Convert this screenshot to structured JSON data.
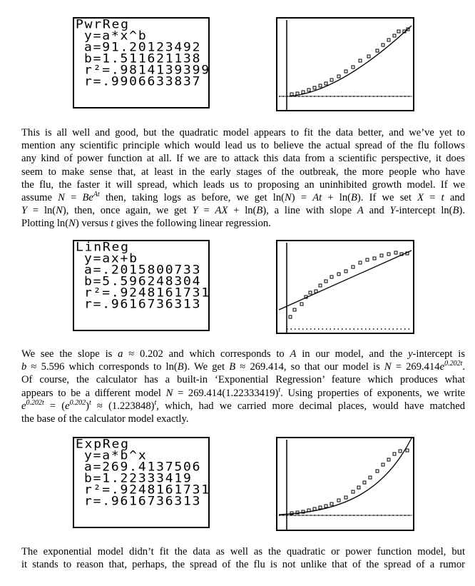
{
  "screens": [
    {
      "lines": [
        "PwrReg",
        "y=a*x^b",
        "a=91.20123492",
        "b=1.511621138",
        "r²=.9814139399",
        "r=.9906633837"
      ]
    },
    {
      "lines": [
        "LinReg",
        "y=ax+b",
        "a=.2015800733",
        "b=5.596248304",
        "r²=.9248161731",
        "r=.9616736313"
      ]
    },
    {
      "lines": [
        "ExpReg",
        "y=a*b^x",
        "a=269.4137506",
        "b=1.22333419",
        "r²=.9248161731",
        "r=.9616736313"
      ]
    }
  ],
  "paragraphs": [
    {
      "lines": [
        [
          "This is all well and good, but the quadratic model appears to fit the data better, and we’ve yet to"
        ],
        [
          "mention any scientific principle which would lead us to believe the actual spread of the flu follows"
        ],
        [
          "any kind of power function at all. If we are to attack this data from a scientific perspective, it does"
        ],
        [
          "seem to make sense that, at least in the early stages of the outbreak, the more people who have"
        ],
        [
          "the flu, the faster it will spread, which leads us to proposing an uninhibited growth model. If we"
        ],
        [
          "assume ",
          {
            "i": "N"
          },
          " = ",
          {
            "i": "Be"
          },
          {
            "sup": "At"
          },
          " then, taking logs as before, we get ln(",
          {
            "i": "N"
          },
          ") = ",
          {
            "i": "At"
          },
          " + ln(",
          {
            "i": "B"
          },
          "). If we set ",
          {
            "i": "X"
          },
          " = ",
          {
            "i": "t"
          },
          " and"
        ],
        [
          {
            "i": "Y"
          },
          " = ln(",
          {
            "i": "N"
          },
          "), then, once again, we get ",
          {
            "i": "Y"
          },
          " = ",
          {
            "i": "AX"
          },
          " + ln(",
          {
            "i": "B"
          },
          "), a line with slope ",
          {
            "i": "A"
          },
          " and ",
          {
            "i": "Y"
          },
          "-intercept ln(",
          {
            "i": "B"
          },
          ")."
        ],
        [
          "Plotting ln(",
          {
            "i": "N"
          },
          ") versus ",
          {
            "i": "t"
          },
          " gives the following linear regression."
        ]
      ]
    },
    {
      "lines": [
        [
          "We see the slope is ",
          {
            "i": "a"
          },
          " ≈ 0.202 and which corresponds to ",
          {
            "i": "A"
          },
          " in our model, and the ",
          {
            "i": "y"
          },
          "-intercept is"
        ],
        [
          {
            "i": "b"
          },
          " ≈ 5.596 which corresponds to ln(",
          {
            "i": "B"
          },
          "). We get ",
          {
            "i": "B"
          },
          " ≈ 269.414, so that our model is ",
          {
            "i": "N"
          },
          " = 269.414",
          {
            "i": "e"
          },
          {
            "sup": "0.202t"
          },
          "."
        ],
        [
          "Of course, the calculator has a built-in ‘Exponential Regression’ feature which produces what"
        ],
        [
          "appears to be a different model ",
          {
            "i": "N"
          },
          " = 269.414(1.22333419)",
          {
            "sup": "t"
          },
          ". Using properties of exponents, we write"
        ],
        [
          {
            "i": "e"
          },
          {
            "sup": "0.202t"
          },
          " = (",
          {
            "i": "e"
          },
          {
            "sup": "0.202"
          },
          ")",
          {
            "sup": "t"
          },
          " ≈ (1.223848)",
          {
            "sup": "t"
          },
          ", which, had we carried more decimal places, would have matched"
        ],
        [
          "the base of the calculator model exactly."
        ]
      ]
    },
    {
      "lines": [
        [
          "The exponential model didn’t fit the data as well as the quadratic or power function model, but"
        ],
        [
          "it stands to reason that, perhaps, the spread of the flu is not unlike that of the spread of a rumor"
        ]
      ]
    }
  ]
}
